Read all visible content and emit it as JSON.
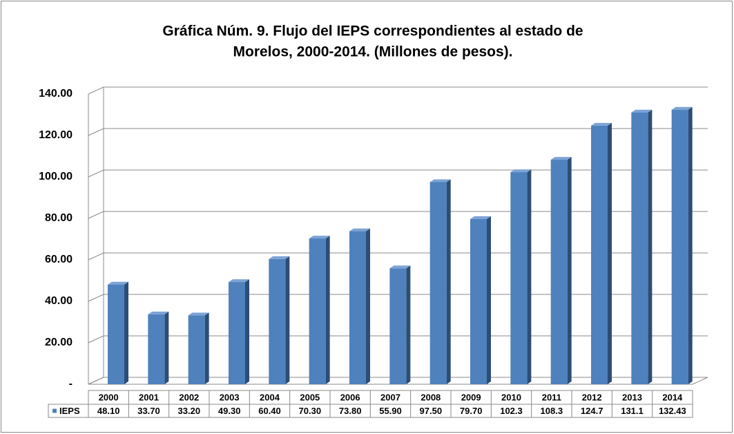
{
  "chart_data": {
    "type": "bar3d",
    "title": "Gráfica Núm. 9. Flujo del IEPS correspondientes al estado de",
    "subtitle": "Morelos, 2000-2014. (Millones de pesos).",
    "categories": [
      "2000",
      "2001",
      "2002",
      "2003",
      "2004",
      "2005",
      "2006",
      "2007",
      "2008",
      "2009",
      "2010",
      "2011",
      "2012",
      "2013",
      "2014"
    ],
    "series": [
      {
        "name": "IEPS",
        "color": "#4f81bd",
        "values": [
          48.1,
          33.7,
          33.2,
          49.3,
          60.4,
          70.3,
          73.8,
          55.9,
          97.5,
          79.7,
          102.3,
          108.3,
          124.7,
          131.1,
          132.43
        ],
        "value_labels": [
          "48.10",
          "33.70",
          "33.20",
          "49.30",
          "60.40",
          "70.30",
          "73.80",
          "55.90",
          "97.50",
          "79.70",
          "102.3",
          "108.3",
          "124.7",
          "131.1",
          "132.43"
        ]
      }
    ],
    "ylim": [
      0,
      140
    ],
    "yticks": [
      {
        "value": 0,
        "label": "-"
      },
      {
        "value": 20,
        "label": "20.00"
      },
      {
        "value": 40,
        "label": "40.00"
      },
      {
        "value": 60,
        "label": "60.00"
      },
      {
        "value": 80,
        "label": "80.00"
      },
      {
        "value": 100,
        "label": "100.00"
      },
      {
        "value": 120,
        "label": "120.00"
      },
      {
        "value": 140,
        "label": "140.00"
      }
    ],
    "grid": true,
    "data_table": true
  }
}
